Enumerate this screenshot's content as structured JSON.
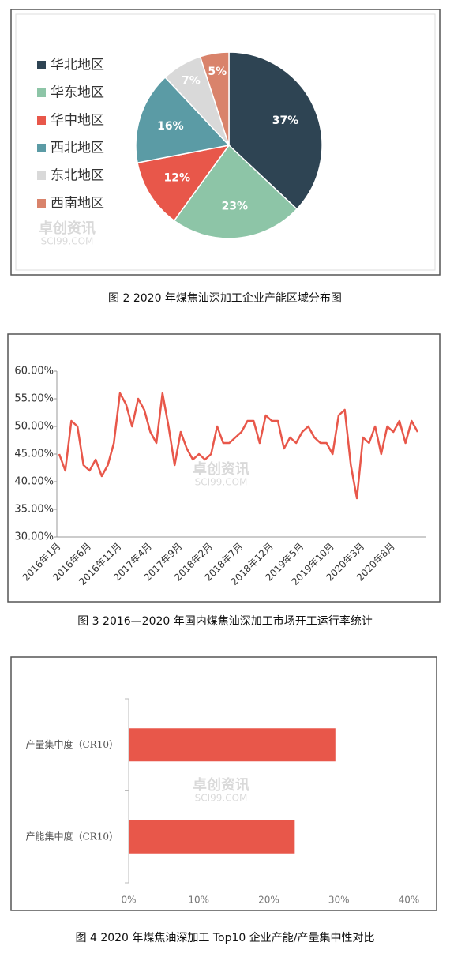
{
  "chart_data": [
    {
      "type": "pie",
      "caption": "图 2  2020 年煤焦油深加工企业产能区域分布图",
      "categories": [
        "华北地区",
        "华东地区",
        "华中地区",
        "西北地区",
        "东北地区",
        "西南地区"
      ],
      "values": [
        37,
        23,
        12,
        16,
        7,
        5
      ],
      "value_labels": [
        "37%",
        "23%",
        "12%",
        "16%",
        "7%",
        "5%"
      ],
      "colors": [
        "#2e4453",
        "#8dc5a7",
        "#e8574a",
        "#5b9ba5",
        "#d9d9d9",
        "#d9836b"
      ],
      "watermark": [
        "卓创资讯",
        "SCI99.COM"
      ]
    },
    {
      "type": "line",
      "caption": "图 3  2016—2020 年国内煤焦油深加工市场开工运行率统计",
      "categories": [
        "2016年1月",
        null,
        null,
        null,
        null,
        "2016年6月",
        null,
        null,
        null,
        null,
        "2016年11月",
        null,
        null,
        null,
        null,
        "2017年4月",
        null,
        null,
        null,
        null,
        "2017年9月",
        null,
        null,
        null,
        null,
        "2018年2月",
        null,
        null,
        null,
        null,
        "2018年7月",
        null,
        null,
        null,
        null,
        "2018年12月",
        null,
        null,
        null,
        null,
        "2019年5月",
        null,
        null,
        null,
        null,
        "2019年10月",
        null,
        null,
        null,
        null,
        "2020年3月",
        null,
        null,
        null,
        null,
        "2020年8月",
        null,
        null,
        null,
        null
      ],
      "series": [
        {
          "color": "#e8574a",
          "values": [
            45,
            42,
            51,
            50,
            43,
            42,
            44,
            41,
            43,
            47,
            56,
            54,
            50,
            55,
            53,
            49,
            47,
            56,
            50,
            43,
            49,
            46,
            44,
            45,
            44,
            45,
            50,
            47,
            47,
            48,
            49,
            51,
            51,
            47,
            52,
            51,
            51,
            46,
            48,
            47,
            49,
            50,
            48,
            47,
            47,
            45,
            52,
            53,
            43,
            37,
            48,
            47,
            50,
            45,
            50,
            49,
            51,
            47,
            51,
            49
          ]
        }
      ],
      "ylim": [
        30,
        60
      ],
      "yticks": [
        {
          "value": 30,
          "label": "30.00%"
        },
        {
          "value": 35,
          "label": "35.00%"
        },
        {
          "value": 40,
          "label": "40.00%"
        },
        {
          "value": 45,
          "label": "45.00%"
        },
        {
          "value": 50,
          "label": "50.00%"
        },
        {
          "value": 55,
          "label": "55.00%"
        },
        {
          "value": 60,
          "label": "60.00%"
        }
      ],
      "watermark": [
        "卓创资讯",
        "SCI99.COM"
      ]
    },
    {
      "type": "bar",
      "orientation": "horizontal",
      "caption": "图 4  2020 年煤焦油深加工 Top10 企业产能/产量集中性对比",
      "categories": [
        "产量集中度（CR10）",
        "产能集中度（CR10）"
      ],
      "values": [
        29.5,
        23.7
      ],
      "color": "#e8574a",
      "xlim": [
        0,
        40
      ],
      "xticks": [
        {
          "value": 0,
          "label": "0%"
        },
        {
          "value": 10,
          "label": "10%"
        },
        {
          "value": 20,
          "label": "20%"
        },
        {
          "value": 30,
          "label": "30%"
        },
        {
          "value": 40,
          "label": "40%"
        }
      ],
      "watermark": [
        "卓创资讯",
        "SCI99.COM"
      ]
    }
  ]
}
